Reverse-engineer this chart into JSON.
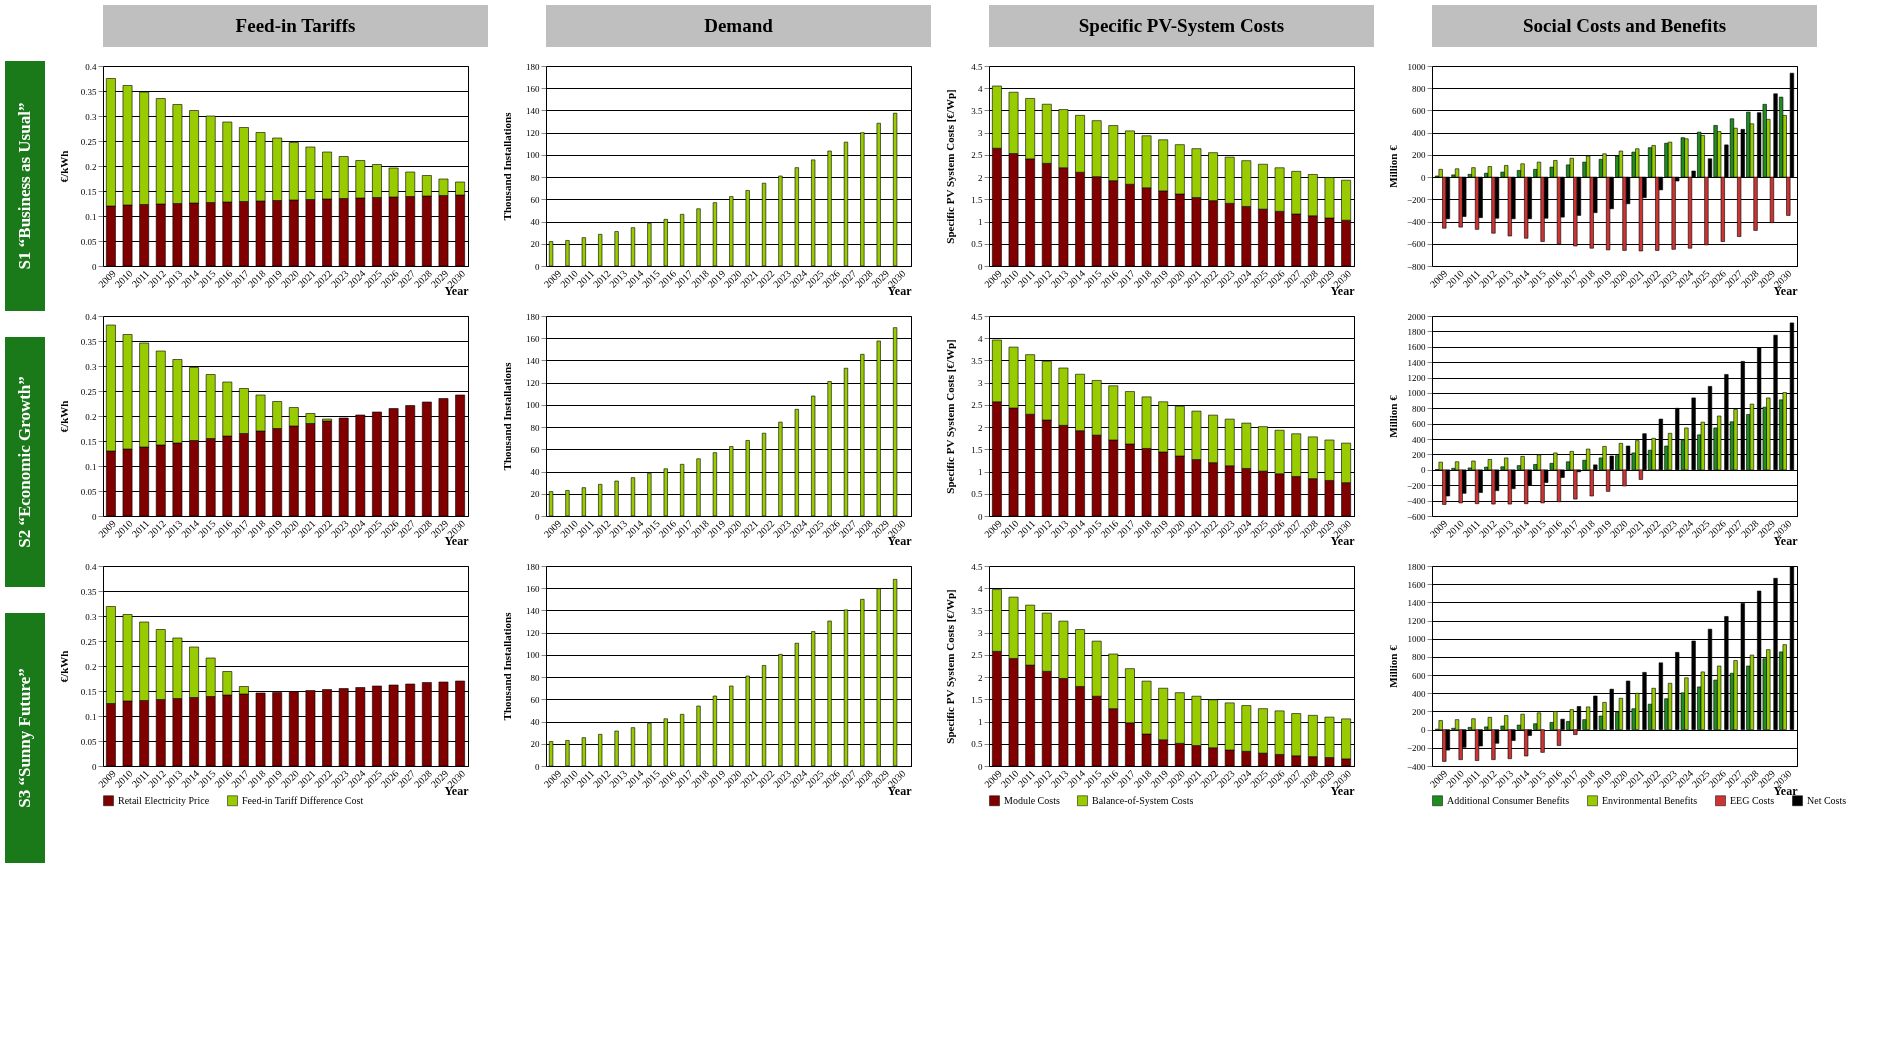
{
  "chart_data": [
    {
      "type": "bar",
      "title": "Feed-in Tariffs",
      "annotations": [
        "S1 “Business as Usual”"
      ],
      "ylabel": "€/kWh",
      "xlabel": "Year",
      "stacked": true,
      "legend": "bottom",
      "grid": "y",
      "ylim": [
        0,
        0.4
      ],
      "yticks": [
        0,
        0.05,
        0.1,
        0.15,
        0.2,
        0.25,
        0.3,
        0.35,
        0.4
      ],
      "categories": [
        "2009",
        "2010",
        "2011",
        "2012",
        "2013",
        "2014",
        "2015",
        "2016",
        "2017",
        "2018",
        "2019",
        "2020",
        "2021",
        "2022",
        "2023",
        "2024",
        "2025",
        "2026",
        "2027",
        "2028",
        "2029",
        "2030"
      ],
      "series": [
        {
          "name": "Retail Electricity Price",
          "color": "#800000",
          "values": [
            0.12,
            0.122,
            0.123,
            0.124,
            0.125,
            0.126,
            0.127,
            0.128,
            0.129,
            0.13,
            0.131,
            0.132,
            0.133,
            0.134,
            0.135,
            0.136,
            0.137,
            0.138,
            0.139,
            0.14,
            0.141,
            0.142
          ]
        },
        {
          "name": "Feed-in Tariff Difference Cost",
          "color": "#99cc00",
          "values": [
            0.255,
            0.239,
            0.225,
            0.211,
            0.198,
            0.185,
            0.173,
            0.16,
            0.148,
            0.137,
            0.125,
            0.115,
            0.105,
            0.094,
            0.084,
            0.075,
            0.066,
            0.058,
            0.049,
            0.041,
            0.033,
            0.026
          ]
        }
      ]
    },
    {
      "type": "bar",
      "title": "Demand",
      "ylabel": "Thousand Installations",
      "xlabel": "Year",
      "legend": false,
      "grid": "y",
      "ylim": [
        0,
        180
      ],
      "yticks": [
        0,
        20,
        40,
        60,
        80,
        100,
        120,
        140,
        160,
        180
      ],
      "categories": [
        "2009",
        "2010",
        "2011",
        "2012",
        "2013",
        "2014",
        "2015",
        "2016",
        "2017",
        "2018",
        "2019",
        "2020",
        "2021",
        "2022",
        "2023",
        "2024",
        "2025",
        "2026",
        "2027",
        "2028",
        "2029",
        "2030"
      ],
      "series": [
        {
          "color": "#99cc00",
          "values": [
            22,
            23,
            25.5,
            28.5,
            31,
            34.5,
            38.5,
            42,
            46.5,
            51.5,
            57,
            62.5,
            68,
            74.5,
            81,
            88.5,
            95.5,
            103.5,
            111.5,
            120,
            128.5,
            137.5
          ]
        }
      ]
    },
    {
      "type": "bar",
      "title": "Specific PV-System Costs",
      "ylabel": "Specific PV System Costs [€/Wp]",
      "xlabel": "Year",
      "stacked": true,
      "legend": "bottom",
      "grid": "y",
      "ylim": [
        0,
        4.5
      ],
      "yticks": [
        0,
        0.5,
        1,
        1.5,
        2,
        2.5,
        3,
        3.5,
        4,
        4.5
      ],
      "categories": [
        "2009",
        "2010",
        "2011",
        "2012",
        "2013",
        "2014",
        "2015",
        "2016",
        "2017",
        "2018",
        "2019",
        "2020",
        "2021",
        "2022",
        "2023",
        "2024",
        "2025",
        "2026",
        "2027",
        "2028",
        "2029",
        "2030"
      ],
      "series": [
        {
          "name": "Module Costs",
          "color": "#800000",
          "values": [
            2.65,
            2.53,
            2.41,
            2.31,
            2.21,
            2.11,
            2.01,
            1.92,
            1.84,
            1.76,
            1.69,
            1.62,
            1.54,
            1.47,
            1.41,
            1.34,
            1.28,
            1.23,
            1.17,
            1.13,
            1.08,
            1.03
          ]
        },
        {
          "name": "Balance-of-System Costs",
          "color": "#99cc00",
          "values": [
            1.4,
            1.38,
            1.36,
            1.33,
            1.31,
            1.28,
            1.26,
            1.24,
            1.2,
            1.17,
            1.15,
            1.11,
            1.1,
            1.08,
            1.04,
            1.03,
            1.01,
            0.98,
            0.96,
            0.93,
            0.91,
            0.9
          ]
        }
      ]
    },
    {
      "type": "bar",
      "title": "Social Costs and Benefits",
      "ylabel": "Million €",
      "xlabel": "Year",
      "legend": "bottom",
      "grid": "y",
      "ylim": [
        -800,
        1000
      ],
      "yticks": [
        -800,
        -600,
        -400,
        -200,
        0,
        200,
        400,
        600,
        800,
        1000
      ],
      "categories": [
        "2009",
        "2010",
        "2011",
        "2012",
        "2013",
        "2014",
        "2015",
        "2016",
        "2017",
        "2018",
        "2019",
        "2020",
        "2021",
        "2022",
        "2023",
        "2024",
        "2025",
        "2026",
        "2027",
        "2028",
        "2029",
        "2030"
      ],
      "series": [
        {
          "name": "Additional Consumer Benefits",
          "color": "#1e8c1e",
          "values": [
            10,
            20,
            25,
            35,
            45,
            60,
            70,
            90,
            110,
            135,
            160,
            190,
            225,
            265,
            305,
            355,
            405,
            465,
            525,
            585,
            655,
            720
          ]
        },
        {
          "name": "Environmental Benefits",
          "color": "#99cc00",
          "values": [
            70,
            75,
            85,
            95,
            105,
            120,
            135,
            150,
            170,
            190,
            210,
            235,
            255,
            285,
            315,
            345,
            375,
            410,
            440,
            480,
            520,
            555
          ]
        },
        {
          "name": "EEG Costs",
          "color": "#cc3333",
          "values": [
            -460,
            -450,
            -470,
            -505,
            -530,
            -550,
            -580,
            -600,
            -620,
            -640,
            -655,
            -660,
            -665,
            -660,
            -650,
            -640,
            -610,
            -580,
            -535,
            -480,
            -410,
            -345
          ]
        },
        {
          "name": "Net Costs",
          "color": "#000000",
          "values": [
            -375,
            -355,
            -365,
            -370,
            -375,
            -375,
            -370,
            -360,
            -345,
            -320,
            -285,
            -240,
            -185,
            -115,
            -35,
            55,
            165,
            290,
            430,
            580,
            750,
            935
          ]
        }
      ]
    },
    {
      "type": "bar",
      "annotations": [
        "S2 “Economic Growth”"
      ],
      "ylabel": "€/kWh",
      "xlabel": "Year",
      "stacked": true,
      "legend": "bottom",
      "grid": "y",
      "ylim": [
        0,
        0.4
      ],
      "yticks": [
        0,
        0.05,
        0.1,
        0.15,
        0.2,
        0.25,
        0.3,
        0.35,
        0.4
      ],
      "categories": [
        "2009",
        "2010",
        "2011",
        "2012",
        "2013",
        "2014",
        "2015",
        "2016",
        "2017",
        "2018",
        "2019",
        "2020",
        "2021",
        "2022",
        "2023",
        "2024",
        "2025",
        "2026",
        "2027",
        "2028",
        "2029",
        "2030"
      ],
      "series": [
        {
          "name": "Retail Electricity Price",
          "color": "#800000",
          "values": [
            0.13,
            0.134,
            0.138,
            0.142,
            0.146,
            0.151,
            0.155,
            0.16,
            0.165,
            0.17,
            0.175,
            0.18,
            0.185,
            0.19,
            0.196,
            0.202,
            0.208,
            0.215,
            0.221,
            0.228,
            0.235,
            0.242
          ]
        },
        {
          "name": "Feed-in Tariff Difference Cost",
          "color": "#99cc00",
          "values": [
            0.252,
            0.229,
            0.208,
            0.188,
            0.167,
            0.146,
            0.128,
            0.108,
            0.09,
            0.072,
            0.054,
            0.037,
            0.02,
            0.004,
            null,
            null,
            null,
            null,
            null,
            null,
            null,
            null
          ]
        }
      ]
    },
    {
      "type": "bar",
      "ylabel": "Thousand Installations",
      "xlabel": "Year",
      "legend": false,
      "grid": "y",
      "ylim": [
        0,
        180
      ],
      "yticks": [
        0,
        20,
        40,
        60,
        80,
        100,
        120,
        140,
        160,
        180
      ],
      "categories": [
        "2009",
        "2010",
        "2011",
        "2012",
        "2013",
        "2014",
        "2015",
        "2016",
        "2017",
        "2018",
        "2019",
        "2020",
        "2021",
        "2022",
        "2023",
        "2024",
        "2025",
        "2026",
        "2027",
        "2028",
        "2029",
        "2030"
      ],
      "series": [
        {
          "color": "#99cc00",
          "values": [
            22,
            23,
            25.5,
            28.5,
            31.5,
            34.5,
            38.5,
            42.5,
            46.5,
            51.5,
            57,
            62.5,
            68,
            74.5,
            84.5,
            96,
            108,
            121,
            133,
            145.5,
            157.5,
            169.5
          ]
        }
      ]
    },
    {
      "type": "bar",
      "ylabel": "Specific PV System Costs [€/Wp]",
      "xlabel": "Year",
      "stacked": true,
      "legend": "bottom",
      "grid": "y",
      "ylim": [
        0,
        4.5
      ],
      "yticks": [
        0,
        0.5,
        1,
        1.5,
        2,
        2.5,
        3,
        3.5,
        4,
        4.5
      ],
      "categories": [
        "2009",
        "2010",
        "2011",
        "2012",
        "2013",
        "2014",
        "2015",
        "2016",
        "2017",
        "2018",
        "2019",
        "2020",
        "2021",
        "2022",
        "2023",
        "2024",
        "2025",
        "2026",
        "2027",
        "2028",
        "2029",
        "2030"
      ],
      "series": [
        {
          "name": "Module Costs",
          "color": "#800000",
          "values": [
            2.57,
            2.43,
            2.29,
            2.16,
            2.04,
            1.92,
            1.82,
            1.71,
            1.62,
            1.52,
            1.44,
            1.35,
            1.27,
            1.2,
            1.13,
            1.07,
            1.01,
            0.95,
            0.89,
            0.84,
            0.8,
            0.75
          ]
        },
        {
          "name": "Balance-of-System Costs",
          "color": "#99cc00",
          "values": [
            1.39,
            1.37,
            1.34,
            1.32,
            1.29,
            1.27,
            1.23,
            1.22,
            1.18,
            1.16,
            1.13,
            1.12,
            1.09,
            1.07,
            1.05,
            1.02,
            1.0,
            0.98,
            0.96,
            0.94,
            0.91,
            0.89
          ]
        }
      ]
    },
    {
      "type": "bar",
      "ylabel": "Million €",
      "xlabel": "Year",
      "legend": "bottom",
      "grid": "y",
      "ylim": [
        -600,
        2000
      ],
      "yticks": [
        -600,
        -400,
        -200,
        0,
        200,
        400,
        600,
        800,
        1000,
        1200,
        1400,
        1600,
        1800,
        2000
      ],
      "categories": [
        "2009",
        "2010",
        "2011",
        "2012",
        "2013",
        "2014",
        "2015",
        "2016",
        "2017",
        "2018",
        "2019",
        "2020",
        "2021",
        "2022",
        "2023",
        "2024",
        "2025",
        "2026",
        "2027",
        "2028",
        "2029",
        "2030"
      ],
      "series": [
        {
          "name": "Additional Consumer Benefits",
          "color": "#1e8c1e",
          "values": [
            5,
            20,
            25,
            35,
            40,
            55,
            70,
            85,
            105,
            125,
            155,
            185,
            220,
            255,
            310,
            385,
            455,
            545,
            625,
            720,
            815,
            910
          ]
        },
        {
          "name": "Environmental Benefits",
          "color": "#99cc00",
          "values": [
            100,
            105,
            115,
            135,
            155,
            175,
            195,
            220,
            240,
            270,
            305,
            345,
            380,
            410,
            475,
            545,
            620,
            700,
            785,
            855,
            935,
            1005
          ]
        },
        {
          "name": "EEG Costs",
          "color": "#cc3333",
          "values": [
            -450,
            -430,
            -440,
            -445,
            -445,
            -440,
            -430,
            -415,
            -380,
            -340,
            -280,
            -210,
            -125,
            -10,
            null,
            null,
            null,
            null,
            null,
            null,
            null,
            null
          ]
        },
        {
          "name": "Net Costs",
          "color": "#000000",
          "values": [
            -340,
            -305,
            -295,
            -270,
            -245,
            -200,
            -165,
            -100,
            -25,
            65,
            180,
            310,
            470,
            660,
            800,
            935,
            1085,
            1240,
            1410,
            1585,
            1750,
            1910
          ]
        }
      ]
    },
    {
      "type": "bar",
      "annotations": [
        "S3 “Sunny Future”"
      ],
      "ylabel": "€/kWh",
      "xlabel": "Year",
      "stacked": true,
      "legend": "bottom",
      "grid": "y",
      "ylim": [
        0,
        0.4
      ],
      "yticks": [
        0,
        0.05,
        0.1,
        0.15,
        0.2,
        0.25,
        0.3,
        0.35,
        0.4
      ],
      "categories": [
        "2009",
        "2010",
        "2011",
        "2012",
        "2013",
        "2014",
        "2015",
        "2016",
        "2017",
        "2018",
        "2019",
        "2020",
        "2021",
        "2022",
        "2023",
        "2024",
        "2025",
        "2026",
        "2027",
        "2028",
        "2029",
        "2030"
      ],
      "series": [
        {
          "name": "Retail Electricity Price",
          "color": "#800000",
          "values": [
            0.125,
            0.13,
            0.131,
            0.133,
            0.135,
            0.137,
            0.139,
            0.142,
            0.144,
            0.146,
            0.147,
            0.149,
            0.151,
            0.153,
            0.155,
            0.157,
            0.16,
            0.162,
            0.164,
            0.167,
            0.168,
            0.17
          ]
        },
        {
          "name": "Feed-in Tariff Difference Cost",
          "color": "#99cc00",
          "values": [
            0.194,
            0.173,
            0.157,
            0.14,
            0.121,
            0.101,
            0.077,
            0.047,
            0.015,
            null,
            null,
            null,
            null,
            null,
            null,
            null,
            null,
            null,
            null,
            null,
            null,
            null
          ]
        }
      ]
    },
    {
      "type": "bar",
      "ylabel": "Thousand Installations",
      "xlabel": "Year",
      "legend": false,
      "grid": "y",
      "ylim": [
        0,
        180
      ],
      "yticks": [
        0,
        20,
        40,
        60,
        80,
        100,
        120,
        140,
        160,
        180
      ],
      "categories": [
        "2009",
        "2010",
        "2011",
        "2012",
        "2013",
        "2014",
        "2015",
        "2016",
        "2017",
        "2018",
        "2019",
        "2020",
        "2021",
        "2022",
        "2023",
        "2024",
        "2025",
        "2026",
        "2027",
        "2028",
        "2029",
        "2030"
      ],
      "series": [
        {
          "color": "#99cc00",
          "values": [
            22,
            23,
            25.5,
            28.5,
            31.5,
            34.5,
            38.5,
            42.5,
            46.5,
            54,
            63,
            72,
            81,
            90.5,
            100.5,
            110.5,
            121,
            130.5,
            140.5,
            150,
            159.5,
            168
          ]
        }
      ]
    },
    {
      "type": "bar",
      "ylabel": "Specific PV System Costs [€/Wp]",
      "xlabel": "Year",
      "stacked": true,
      "legend": "bottom",
      "grid": "y",
      "ylim": [
        0,
        4.5
      ],
      "yticks": [
        0,
        0.5,
        1,
        1.5,
        2,
        2.5,
        3,
        3.5,
        4,
        4.5
      ],
      "categories": [
        "2009",
        "2010",
        "2011",
        "2012",
        "2013",
        "2014",
        "2015",
        "2016",
        "2017",
        "2018",
        "2019",
        "2020",
        "2021",
        "2022",
        "2023",
        "2024",
        "2025",
        "2026",
        "2027",
        "2028",
        "2029",
        "2030"
      ],
      "series": [
        {
          "name": "Module Costs",
          "color": "#800000",
          "values": [
            2.58,
            2.42,
            2.27,
            2.13,
            1.97,
            1.79,
            1.57,
            1.29,
            0.97,
            0.72,
            0.59,
            0.51,
            0.46,
            0.41,
            0.36,
            0.33,
            0.29,
            0.26,
            0.23,
            0.21,
            0.19,
            0.16
          ]
        },
        {
          "name": "Balance-of-System Costs",
          "color": "#99cc00",
          "values": [
            1.39,
            1.38,
            1.35,
            1.31,
            1.29,
            1.28,
            1.24,
            1.23,
            1.22,
            1.19,
            1.16,
            1.14,
            1.11,
            1.08,
            1.06,
            1.03,
            1.0,
            0.98,
            0.95,
            0.93,
            0.91,
            0.9
          ]
        }
      ]
    },
    {
      "type": "bar",
      "ylabel": "Million €",
      "xlabel": "Year",
      "legend": "bottom",
      "grid": "y",
      "ylim": [
        -400,
        1800
      ],
      "yticks": [
        -400,
        -200,
        0,
        200,
        400,
        600,
        800,
        1000,
        1200,
        1400,
        1600,
        1800
      ],
      "categories": [
        "2009",
        "2010",
        "2011",
        "2012",
        "2013",
        "2014",
        "2015",
        "2016",
        "2017",
        "2018",
        "2019",
        "2020",
        "2021",
        "2022",
        "2023",
        "2024",
        "2025",
        "2026",
        "2027",
        "2028",
        "2029",
        "2030"
      ],
      "series": [
        {
          "name": "Additional Consumer Benefits",
          "color": "#1e8c1e",
          "values": [
            5,
            15,
            25,
            30,
            40,
            50,
            65,
            80,
            90,
            110,
            150,
            190,
            230,
            280,
            340,
            405,
            470,
            545,
            620,
            700,
            780,
            855
          ]
        },
        {
          "name": "Environmental Benefits",
          "color": "#99cc00",
          "values": [
            100,
            110,
            120,
            135,
            155,
            170,
            185,
            200,
            220,
            250,
            300,
            345,
            400,
            455,
            510,
            570,
            635,
            700,
            760,
            820,
            880,
            935
          ]
        },
        {
          "name": "EEG Costs",
          "color": "#cc3333",
          "values": [
            -350,
            -330,
            -340,
            -330,
            -320,
            -290,
            -250,
            -175,
            -55,
            null,
            null,
            null,
            null,
            null,
            null,
            null,
            null,
            null,
            null,
            null,
            null,
            null
          ]
        },
        {
          "name": "Net Costs",
          "color": "#000000",
          "values": [
            -225,
            -195,
            -180,
            -150,
            -120,
            -65,
            null,
            115,
            255,
            370,
            445,
            535,
            630,
            735,
            850,
            975,
            1105,
            1245,
            1390,
            1525,
            1665,
            1790
          ]
        }
      ]
    }
  ]
}
